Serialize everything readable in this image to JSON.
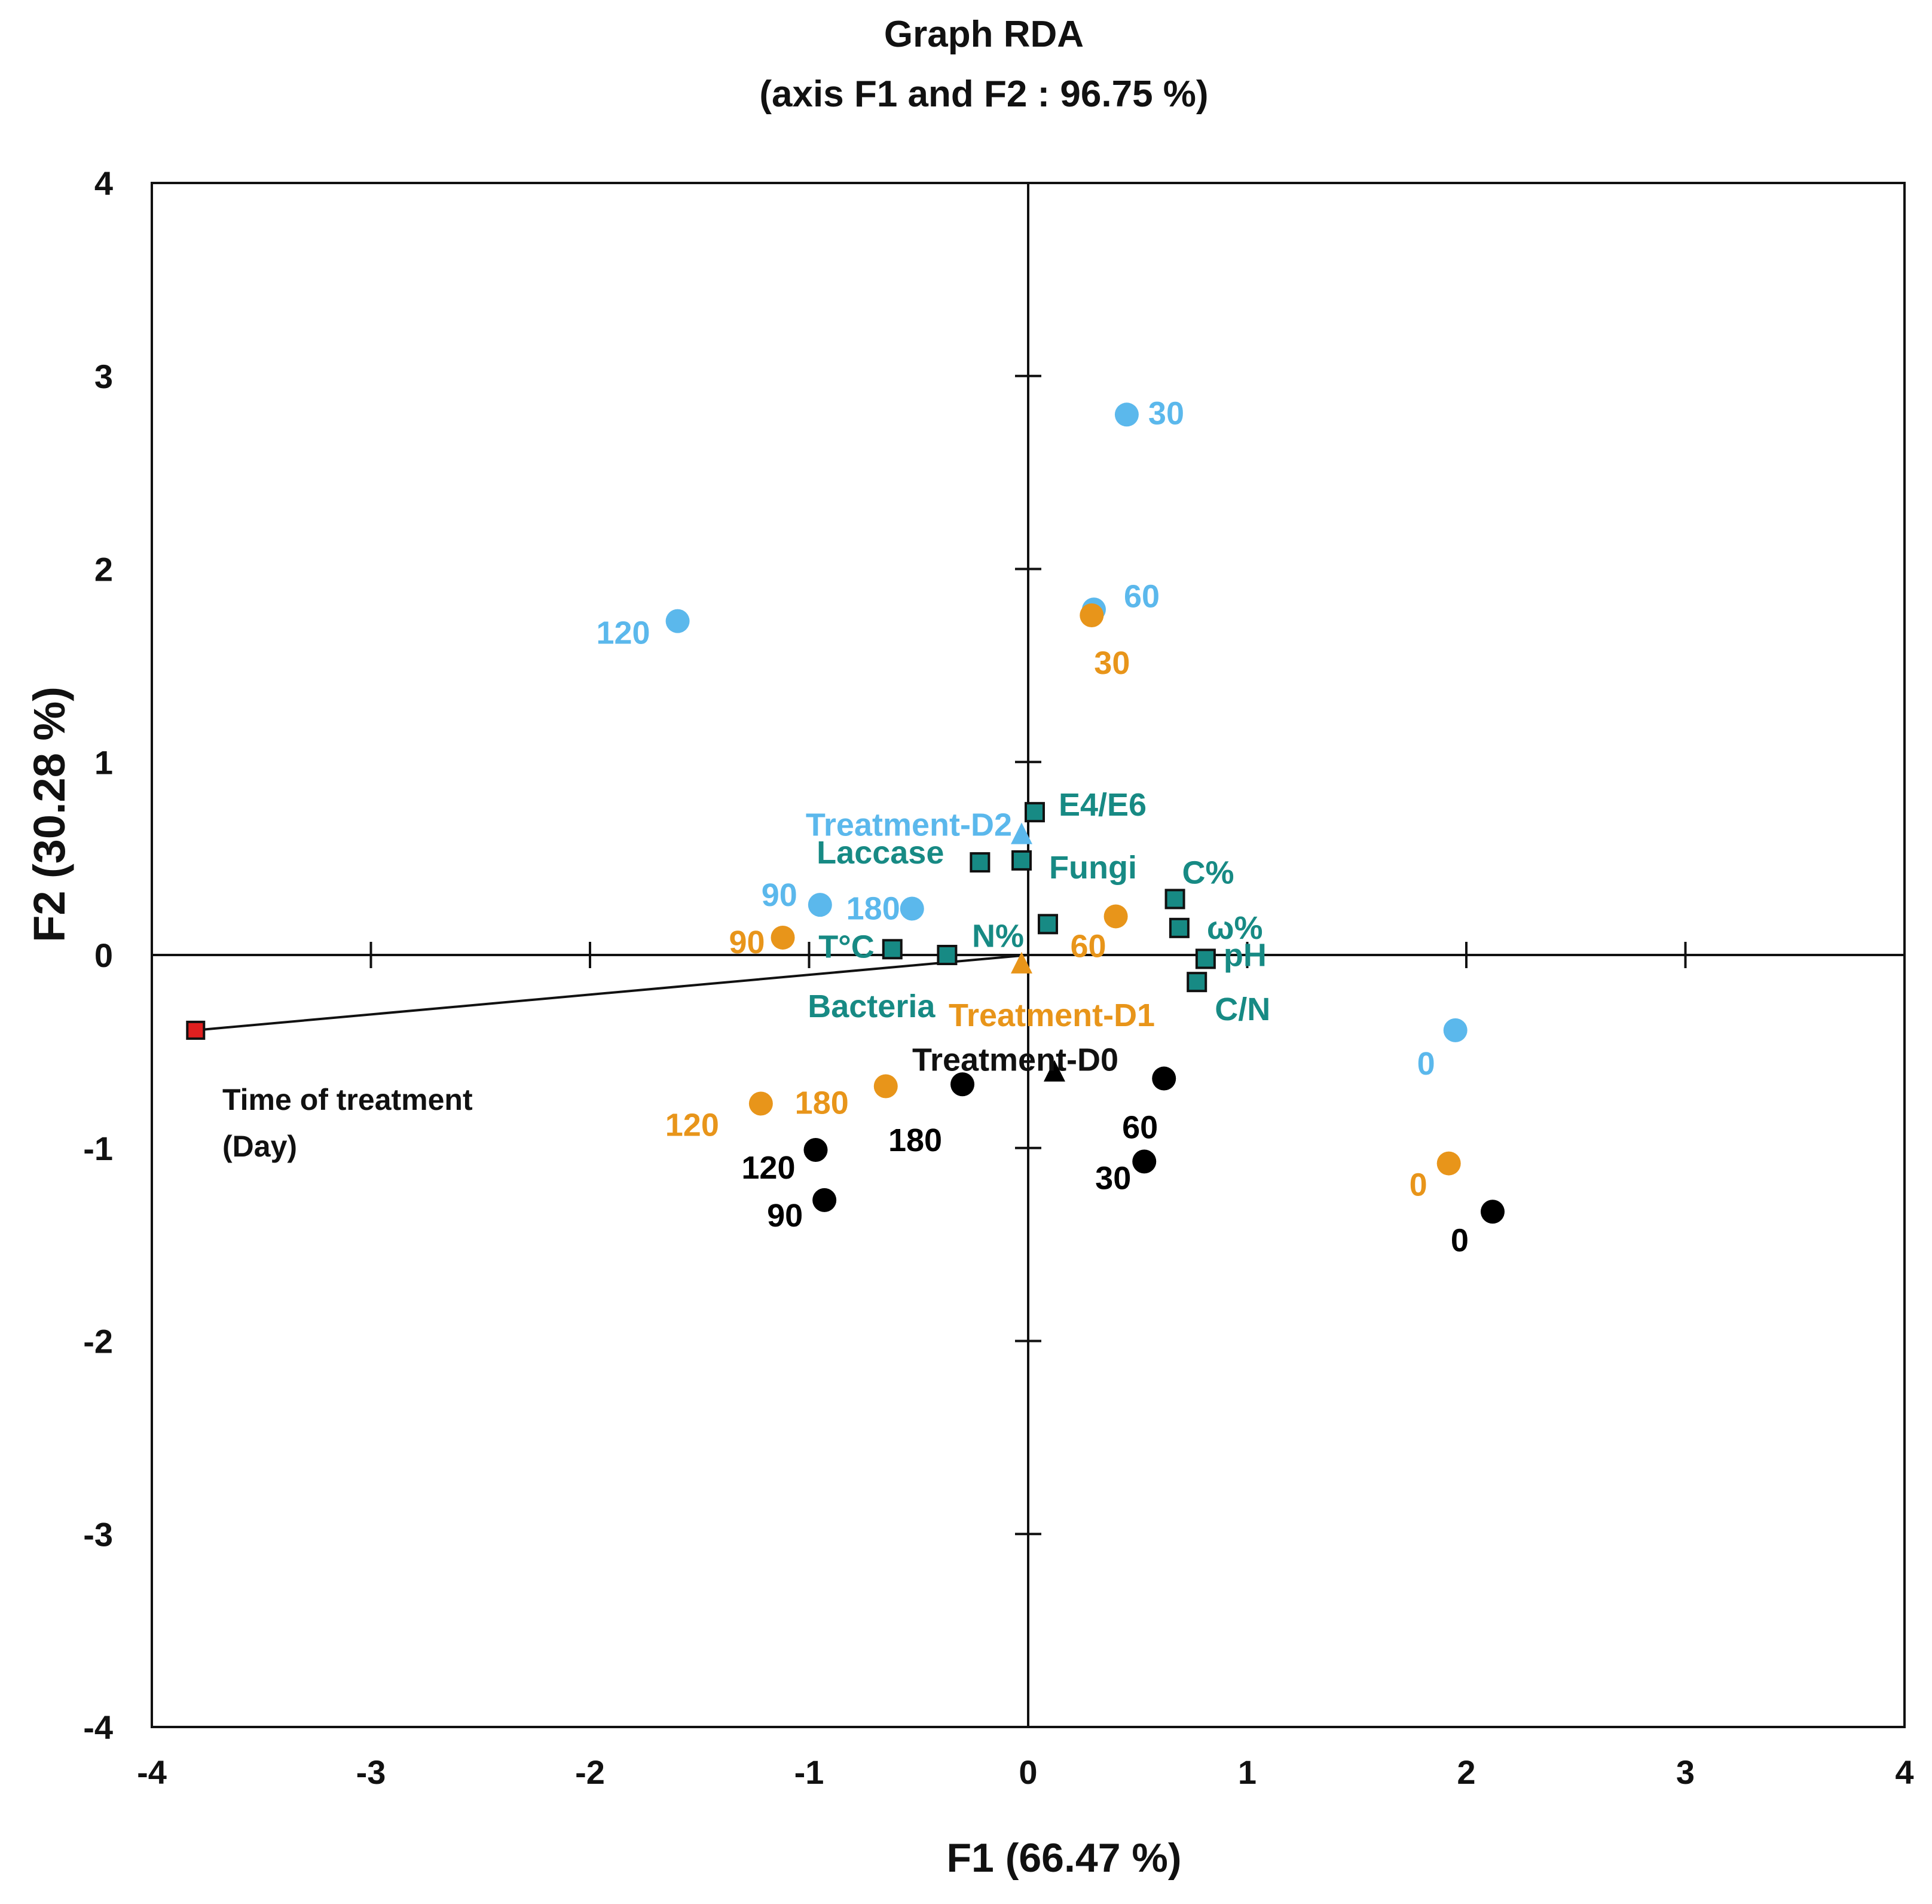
{
  "chart_data": {
    "type": "scatter",
    "title": "Graph RDA",
    "subtitle": "(axis F1 and F2 : 96.75 %)",
    "xlabel": "F1 (66.47 %)",
    "ylabel": "F2 (30.28 %)",
    "xlim": [
      -4,
      4
    ],
    "ylim": [
      -4,
      4
    ],
    "xticks": [
      -4,
      -3,
      -2,
      -1,
      0,
      1,
      2,
      3,
      4
    ],
    "yticks": [
      -4,
      -3,
      -2,
      -1,
      0,
      1,
      2,
      3,
      4
    ],
    "colors": {
      "D0": "#000000",
      "D1": "#E8951A",
      "D2": "#5BB8EC",
      "variables": "#178A84",
      "supplementary": "#E02020"
    },
    "observations": [
      {
        "group": "D2",
        "label": "30",
        "x": 0.45,
        "y": 2.8
      },
      {
        "group": "D2",
        "label": "60",
        "x": 0.3,
        "y": 1.79
      },
      {
        "group": "D2",
        "label": "120",
        "x": -1.6,
        "y": 1.73
      },
      {
        "group": "D2",
        "label": "90",
        "x": -0.95,
        "y": 0.26
      },
      {
        "group": "D2",
        "label": "180",
        "x": -0.53,
        "y": 0.24
      },
      {
        "group": "D2",
        "label": "0",
        "x": 1.95,
        "y": -0.39
      },
      {
        "group": "D1",
        "label": "30",
        "x": 0.29,
        "y": 1.76
      },
      {
        "group": "D1",
        "label": "90",
        "x": -1.12,
        "y": 0.09
      },
      {
        "group": "D1",
        "label": "60",
        "x": 0.4,
        "y": 0.2
      },
      {
        "group": "D1",
        "label": "120",
        "x": -1.22,
        "y": -0.77
      },
      {
        "group": "D1",
        "label": "180",
        "x": -0.65,
        "y": -0.68
      },
      {
        "group": "D1",
        "label": "0",
        "x": 1.92,
        "y": -1.08
      },
      {
        "group": "D0",
        "label": "180",
        "x": -0.3,
        "y": -0.67
      },
      {
        "group": "D0",
        "label": "60",
        "x": 0.62,
        "y": -0.64
      },
      {
        "group": "D0",
        "label": "120",
        "x": -0.97,
        "y": -1.01
      },
      {
        "group": "D0",
        "label": "90",
        "x": -0.93,
        "y": -1.27
      },
      {
        "group": "D0",
        "label": "30",
        "x": 0.53,
        "y": -1.07
      },
      {
        "group": "D0",
        "label": "0",
        "x": 2.12,
        "y": -1.33
      }
    ],
    "centroids": [
      {
        "group": "D2",
        "label": "Treatment-D2",
        "x": -0.03,
        "y": 0.63
      },
      {
        "group": "D1",
        "label": "Treatment-D1",
        "x": -0.03,
        "y": -0.04
      },
      {
        "group": "D0",
        "label": "Treatment-D0",
        "x": 0.12,
        "y": -0.6
      }
    ],
    "variables": [
      {
        "label": "E4/E6",
        "x": 0.03,
        "y": 0.74
      },
      {
        "label": "Laccase",
        "x": -0.22,
        "y": 0.48
      },
      {
        "label": "Fungi",
        "x": -0.03,
        "y": 0.49
      },
      {
        "label": "C%",
        "x": 0.67,
        "y": 0.29
      },
      {
        "label": "ω%",
        "x": 0.69,
        "y": 0.14
      },
      {
        "label": "N%",
        "x": 0.09,
        "y": 0.16
      },
      {
        "label": "T°C",
        "x": -0.62,
        "y": 0.03
      },
      {
        "label": "Bacteria",
        "x": -0.37,
        "y": 0.0
      },
      {
        "label": "pH",
        "x": 0.81,
        "y": -0.02
      },
      {
        "label": "C/N",
        "x": 0.77,
        "y": -0.14
      }
    ],
    "supplementary": {
      "label": "Time of treatment",
      "label_line2": "(Day)",
      "x": -3.8,
      "y": -0.39
    }
  }
}
